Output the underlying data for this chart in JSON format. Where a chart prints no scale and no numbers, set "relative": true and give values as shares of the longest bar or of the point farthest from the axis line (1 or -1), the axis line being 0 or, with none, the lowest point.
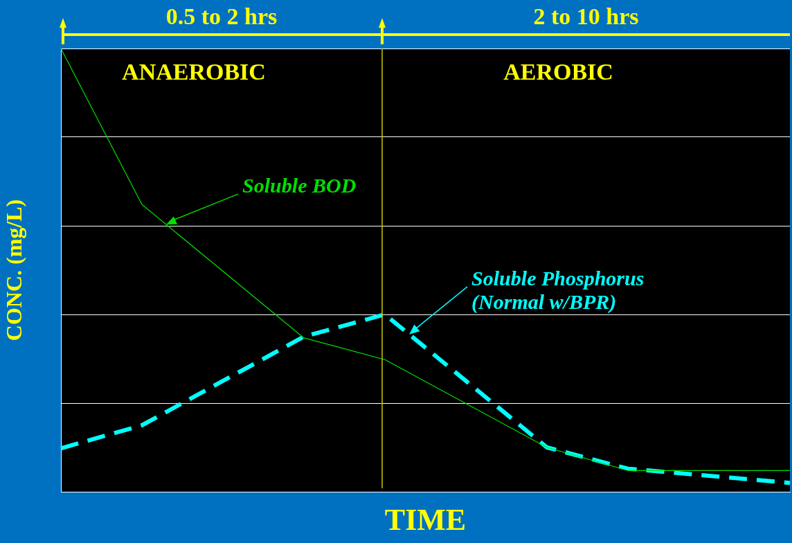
{
  "chart_data": {
    "type": "line",
    "relative": true,
    "xlabel": "TIME",
    "ylabel": "CONC. (mg/L)",
    "categories": [
      null,
      null,
      null,
      null,
      null,
      null,
      null,
      null,
      null,
      null
    ],
    "series": [
      {
        "name": "Soluble BOD",
        "color": "#00e000",
        "line_style": "solid",
        "values": [
          1,
          0.648,
          null,
          0.347,
          0.298,
          null,
          0.1,
          0.048,
          null,
          0.048
        ]
      },
      {
        "name": "Soluble Phosphorus\n(Normal w/BPR)",
        "color": "#00ffff",
        "line_style": "dashed",
        "values": [
          0.098,
          0.15,
          null,
          0.35,
          0.4,
          null,
          0.1,
          0.052,
          null,
          0.02
        ]
      }
    ],
    "annotations": [
      "0.5 to 2 hrs",
      "2 to 10 hrs",
      "ANAEROBIC",
      "AEROBIC"
    ],
    "grid": "y",
    "marker": "none",
    "legend": false
  }
}
